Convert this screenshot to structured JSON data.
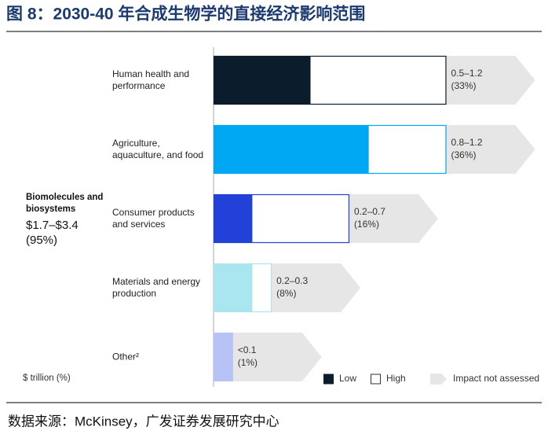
{
  "chart_data": {
    "type": "range_bar",
    "title": "图 8：2030-40 年合成生物学的直接经济影响范围",
    "categories": [
      "Human health and performance",
      "Agriculture, aquaculture, and food",
      "Consumer products and services",
      "Materials and energy production",
      "Other²"
    ],
    "bar_colors": [
      "#0b1d2c",
      "#00a8f3",
      "#2141d8",
      "#a9e6ef",
      "#b6c3f4"
    ],
    "series": [
      {
        "name": "Low",
        "color": "#0b1d2c",
        "values": [
          0.5,
          0.8,
          0.2,
          0.2,
          0.1
        ]
      },
      {
        "name": "High",
        "color": "#ffffff",
        "values": [
          1.2,
          1.2,
          0.7,
          0.3,
          0.1
        ]
      }
    ],
    "value_labels": [
      "0.5–1.2",
      "0.8–1.2",
      "0.2–0.7",
      "0.2–0.3",
      "<0.1"
    ],
    "shares": [
      33,
      36,
      16,
      8,
      1
    ],
    "share_labels": [
      "(33%)",
      "(36%)",
      "(16%)",
      "(8%)",
      "(1%)"
    ],
    "not_assessed": {
      "name": "Impact not assessed",
      "color": "#e6e6e6"
    },
    "total": {
      "label": "Biomolecules and biosystems",
      "value_label": "$1.7–$3.4",
      "share_label": "(95%)"
    },
    "unit_label": "$ trillion (%)",
    "xlim": [
      0,
      1.7
    ],
    "source": "数据来源：McKinsey，广发证券发展研究中心"
  }
}
